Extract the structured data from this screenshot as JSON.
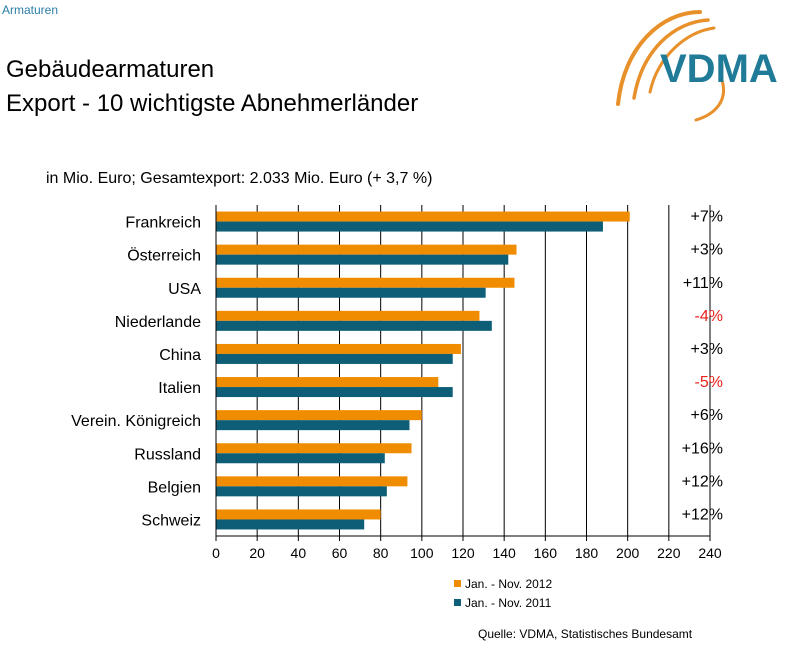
{
  "header": {
    "section": "Armaturen",
    "title_line1": "Gebäudearmaturen",
    "title_line2": "Export - 10 wichtigste Abnehmerländer",
    "logo_text": "VDMA"
  },
  "colors": {
    "series_2012": "#f08c00",
    "series_2011": "#0f5e78",
    "negative": "#e8211c",
    "logo_orange": "#e8902a",
    "logo_teal": "#1f7b97"
  },
  "chart_data": {
    "type": "bar",
    "orientation": "horizontal",
    "subtitle": "in Mio. Euro; Gesamtexport: 2.033 Mio. Euro (+ 3,7 %)",
    "categories": [
      "Frankreich",
      "Österreich",
      "USA",
      "Niederlande",
      "China",
      "Italien",
      "Verein. Königreich",
      "Russland",
      "Belgien",
      "Schweiz"
    ],
    "series": [
      {
        "name": "Jan. - Nov. 2012",
        "values": [
          201,
          146,
          145,
          128,
          119,
          108,
          100,
          95,
          93,
          80
        ]
      },
      {
        "name": "Jan. - Nov. 2011",
        "values": [
          188,
          142,
          131,
          134,
          115,
          115,
          94,
          82,
          83,
          72
        ]
      }
    ],
    "changes": [
      "+7%",
      "+3%",
      "+11%",
      "-4%",
      "+3%",
      "-5%",
      "+6%",
      "+16%",
      "+12%",
      "+12%"
    ],
    "xlim": [
      0,
      240
    ],
    "xticks": [
      0,
      20,
      40,
      60,
      80,
      100,
      120,
      140,
      160,
      180,
      200,
      220,
      240
    ],
    "grid": "vertical lines",
    "legend_position": "bottom"
  },
  "source": "Quelle: VDMA, Statistisches Bundesamt"
}
